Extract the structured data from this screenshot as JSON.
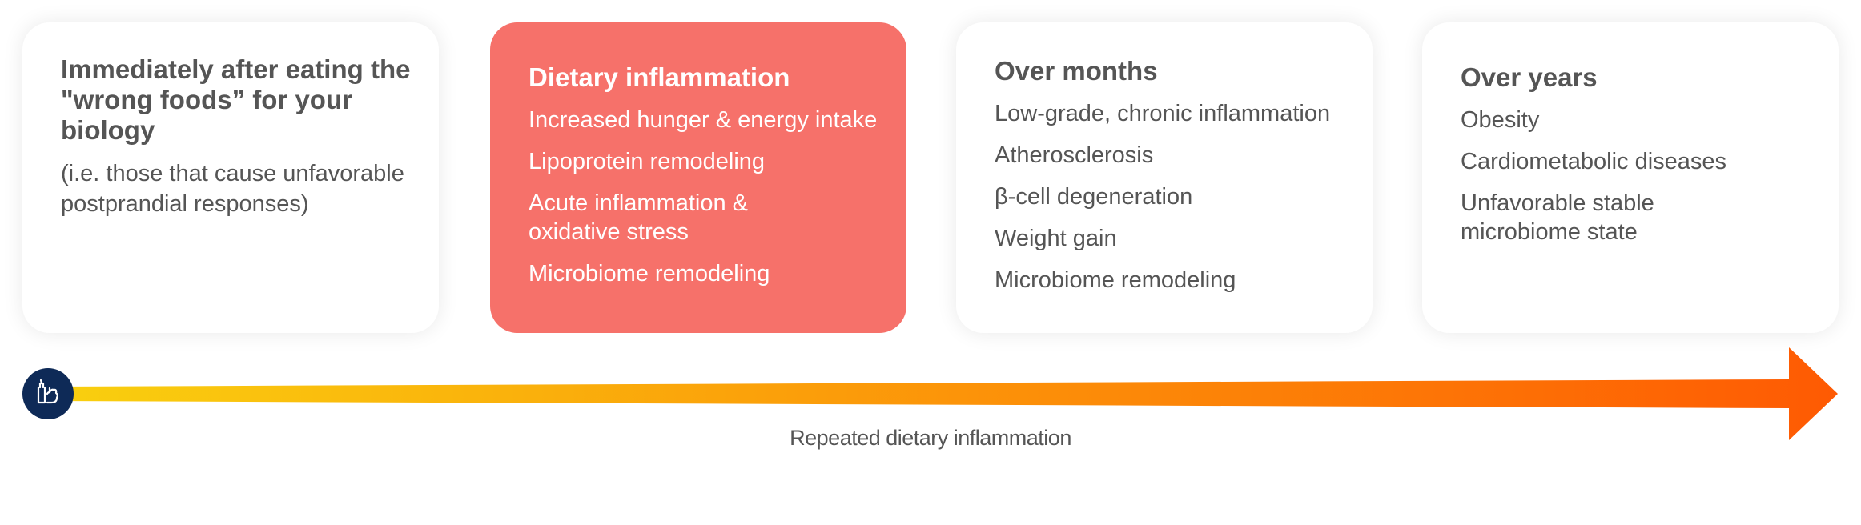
{
  "cards": [
    {
      "title": "Immediately after eating the \"wrong foods” for your biology",
      "subtitle": "(i.e. those that cause unfavorable postprandial responses)",
      "items": []
    },
    {
      "title": "Dietary inflammation",
      "items": [
        "Increased hunger & energy intake",
        "Lipoprotein remodeling",
        "Acute inflammation & oxidative stress",
        "Microbiome remodeling"
      ]
    },
    {
      "title": "Over months",
      "items": [
        "Low-grade, chronic inflammation",
        "Atherosclerosis",
        "β-cell degeneration",
        "Weight gain",
        "Microbiome remodeling"
      ]
    },
    {
      "title": "Over years",
      "items": [
        "Obesity",
        "Cardiometabolic diseases",
        "Unfavorable stable microbiome state"
      ]
    }
  ],
  "timeline": {
    "label": "Repeated dietary inflammation",
    "start_icon": "food-icon",
    "gradient_start": "#f9d00f",
    "gradient_end": "#fe5a03",
    "icon_bg": "#0e2a57"
  },
  "colors": {
    "highlight_card": "#f6716a",
    "text": "#555555"
  }
}
